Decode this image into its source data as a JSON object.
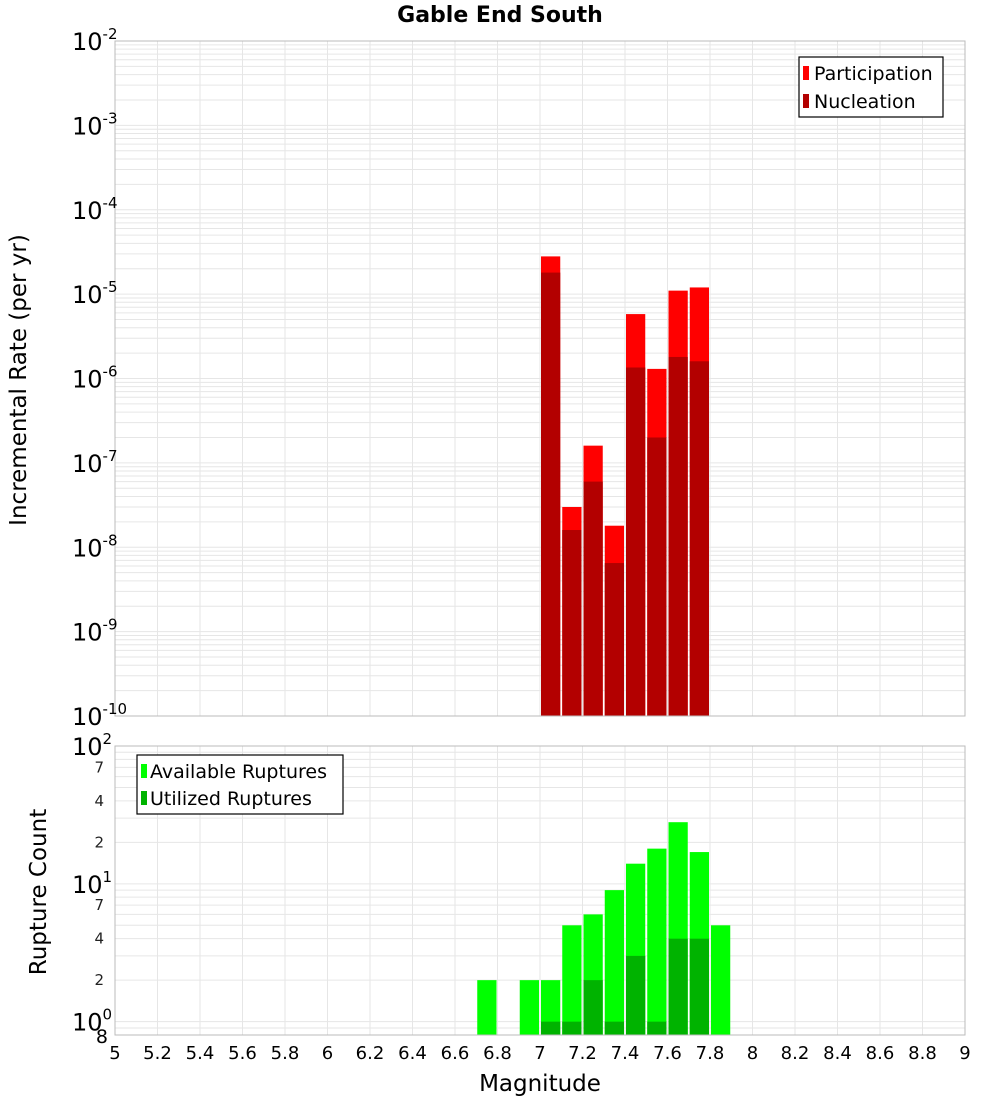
{
  "colors": {
    "participation": "#ff0000",
    "nucleation": "#b30000",
    "available": "#00ff00",
    "utilized": "#00b300",
    "grid": "#e6e6e6",
    "frame": "#bbbbbb"
  },
  "chart_data": [
    {
      "type": "bar",
      "title": "Gable End South",
      "xlabel": "Magnitude",
      "ylabel": "Incremental Rate (per yr)",
      "yscale": "log",
      "xlim": [
        5,
        9
      ],
      "ylim": [
        1e-10,
        0.01
      ],
      "grid": true,
      "legend": "top-right",
      "y_ticks": [
        {
          "value": 0.01,
          "base": "10",
          "exp": "-2"
        },
        {
          "value": 0.001,
          "base": "10",
          "exp": "-3"
        },
        {
          "value": 0.0001,
          "base": "10",
          "exp": "-4"
        },
        {
          "value": 1e-05,
          "base": "10",
          "exp": "-5"
        },
        {
          "value": 1e-06,
          "base": "10",
          "exp": "-6"
        },
        {
          "value": 1e-07,
          "base": "10",
          "exp": "-7"
        },
        {
          "value": 1e-08,
          "base": "10",
          "exp": "-8"
        },
        {
          "value": 1e-09,
          "base": "10",
          "exp": "-9"
        },
        {
          "value": 1e-10,
          "base": "10",
          "exp": "-10"
        }
      ],
      "categories": [
        "7.05",
        "7.15",
        "7.25",
        "7.35",
        "7.45",
        "7.55",
        "7.65",
        "7.75"
      ],
      "series": [
        {
          "name": "Participation",
          "key": "participation",
          "x": [
            7.05,
            7.15,
            7.25,
            7.35,
            7.45,
            7.55,
            7.65,
            7.75
          ],
          "values": [
            2.8e-05,
            3e-08,
            1.6e-07,
            1.8e-08,
            5.8e-06,
            1.3e-06,
            1.1e-05,
            1.2e-05
          ]
        },
        {
          "name": "Nucleation",
          "key": "nucleation",
          "x": [
            7.05,
            7.15,
            7.25,
            7.35,
            7.45,
            7.55,
            7.65,
            7.75
          ],
          "values": [
            1.8e-05,
            1.6e-08,
            6e-08,
            6.5e-09,
            1.35e-06,
            2e-07,
            1.8e-06,
            1.6e-06
          ]
        }
      ]
    },
    {
      "type": "bar",
      "xlabel": "Magnitude",
      "ylabel": "Rupture Count",
      "yscale": "log",
      "xlim": [
        5,
        9
      ],
      "ylim": [
        0.8,
        100
      ],
      "grid": true,
      "legend": "top-left",
      "x_ticks": [
        "5",
        "5.2",
        "5.4",
        "5.6",
        "5.8",
        "6",
        "6.2",
        "6.4",
        "6.6",
        "6.8",
        "7",
        "7.2",
        "7.4",
        "7.6",
        "7.8",
        "8",
        "8.2",
        "8.4",
        "8.6",
        "8.8",
        "9"
      ],
      "y_major_ticks": [
        {
          "value": 100,
          "base": "10",
          "exp": "2"
        },
        {
          "value": 10,
          "base": "10",
          "exp": "1"
        },
        {
          "value": 1,
          "base": "10",
          "exp": "0"
        }
      ],
      "y_minor_ticks": [
        {
          "value": 70,
          "label": "7"
        },
        {
          "value": 40,
          "label": "4"
        },
        {
          "value": 20,
          "label": "2"
        },
        {
          "value": 7,
          "label": "7"
        },
        {
          "value": 4,
          "label": "4"
        },
        {
          "value": 2,
          "label": "2"
        },
        {
          "value": 0.8,
          "label": "8"
        }
      ],
      "categories": [
        "6.75",
        "6.95",
        "7.05",
        "7.15",
        "7.25",
        "7.35",
        "7.45",
        "7.55",
        "7.65",
        "7.75",
        "7.85"
      ],
      "series": [
        {
          "name": "Available Ruptures",
          "key": "available",
          "x": [
            6.75,
            6.95,
            7.05,
            7.15,
            7.25,
            7.35,
            7.45,
            7.55,
            7.65,
            7.75,
            7.85
          ],
          "values": [
            2,
            2,
            2,
            5,
            6,
            9,
            14,
            18,
            28,
            17,
            5
          ]
        },
        {
          "name": "Utilized Ruptures",
          "key": "utilized",
          "x": [
            7.05,
            7.15,
            7.25,
            7.35,
            7.45,
            7.55,
            7.65,
            7.75
          ],
          "values": [
            1,
            1,
            2,
            1,
            3,
            1,
            4,
            4
          ]
        }
      ]
    }
  ]
}
